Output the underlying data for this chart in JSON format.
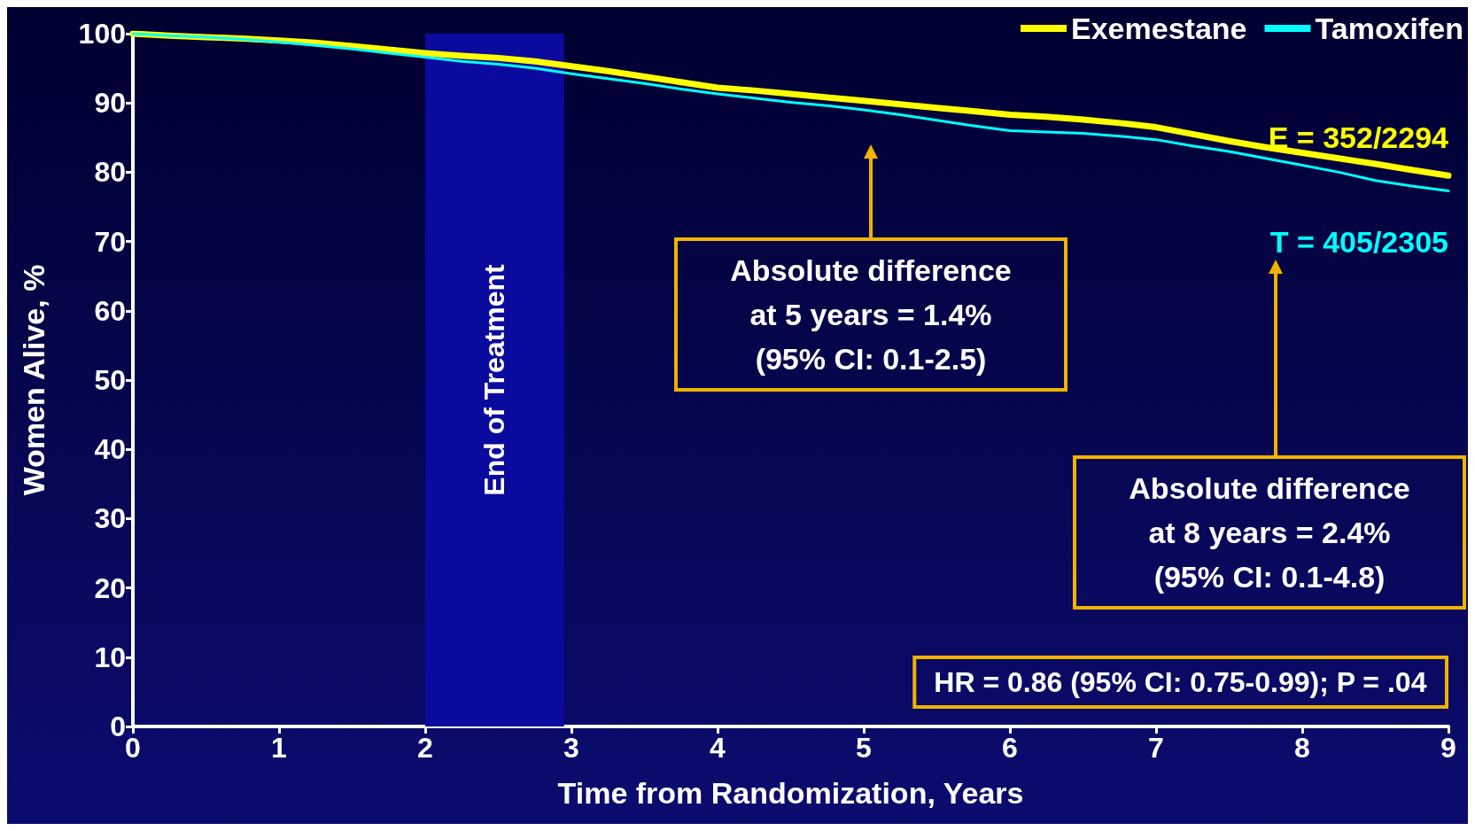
{
  "chart_data": {
    "type": "line",
    "xlabel": "Time from Randomization, Years",
    "ylabel": "Women Alive, %",
    "xlim": [
      0,
      9
    ],
    "xticks": [
      0,
      1,
      2,
      3,
      4,
      5,
      6,
      7,
      8,
      9
    ],
    "ylim": [
      0,
      100
    ],
    "yticks": [
      0,
      10,
      20,
      30,
      40,
      50,
      60,
      70,
      80,
      90,
      100
    ],
    "grid": false,
    "legend": "top right",
    "marker": "none",
    "line_style": "solid",
    "series": [
      {
        "name": "Exemestane",
        "color": "#ffff00",
        "x": [
          0,
          0.25,
          0.5,
          0.75,
          1,
          1.25,
          1.5,
          1.75,
          2,
          2.25,
          2.5,
          2.75,
          3,
          3.25,
          3.5,
          3.75,
          4,
          4.25,
          4.5,
          4.75,
          5,
          5.25,
          5.5,
          5.75,
          6,
          6.25,
          6.5,
          6.75,
          7,
          7.25,
          7.5,
          7.75,
          8,
          8.25,
          8.5,
          8.7,
          9
        ],
        "values": [
          100,
          99.7,
          99.5,
          99.3,
          99,
          98.7,
          98.2,
          97.7,
          97.2,
          96.8,
          96.5,
          96,
          95.3,
          94.6,
          93.8,
          93,
          92.2,
          91.8,
          91.3,
          90.8,
          90.3,
          89.8,
          89.3,
          88.8,
          88.3,
          88,
          87.6,
          87.1,
          86.5,
          85.5,
          84.5,
          83.6,
          82.8,
          82,
          81.2,
          80.5,
          79.5
        ]
      },
      {
        "name": "Tamoxifen",
        "color": "#00ffff",
        "x": [
          0,
          0.25,
          0.5,
          0.75,
          1,
          1.25,
          1.5,
          1.75,
          2,
          2.25,
          2.5,
          2.75,
          3,
          3.25,
          3.5,
          3.75,
          4,
          4.25,
          4.5,
          4.75,
          5,
          5.25,
          5.5,
          5.75,
          6,
          6.25,
          6.5,
          6.75,
          7,
          7.25,
          7.5,
          7.75,
          8,
          8.25,
          8.5,
          8.75,
          9
        ],
        "values": [
          100,
          99.7,
          99.5,
          99.2,
          98.8,
          98.3,
          97.8,
          97.2,
          96.6,
          96,
          95.6,
          95,
          94.2,
          93.5,
          92.8,
          92,
          91.3,
          90.7,
          90.1,
          89.6,
          89,
          88.3,
          87.5,
          86.7,
          86,
          85.8,
          85.6,
          85.2,
          84.7,
          83.8,
          83,
          82,
          81,
          80,
          78.8,
          78,
          77.3
        ]
      }
    ],
    "bands": [
      {
        "axis": "x",
        "from": 2,
        "to": 2.95,
        "label": "End of Treatment",
        "color": "#0a0a9e"
      }
    ],
    "annotations": [
      {
        "text": "E = 352/2294",
        "x": 9,
        "y": 79.5
      },
      {
        "text": "T = 405/2305",
        "x": 9,
        "y": 77.3
      },
      "Absolute difference\nat 5 years = 1.4%\n(95% CI: 0.1-2.5)",
      "Absolute difference\nat 8 years = 2.4%\n(95% CI: 0.1-4.8)",
      "HR = 0.86 (95% CI: 0.75-0.99); P = .04"
    ]
  }
}
